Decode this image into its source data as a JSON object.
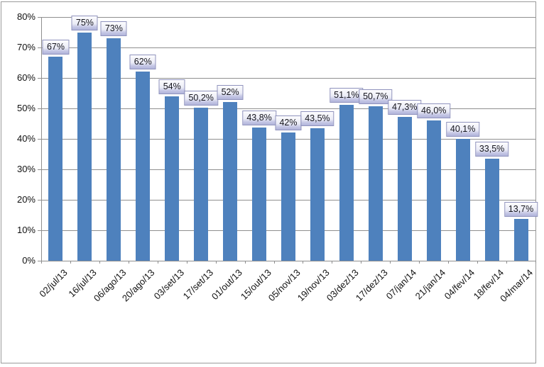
{
  "chart_data": {
    "type": "bar",
    "title": "",
    "xlabel": "",
    "ylabel": "",
    "categories": [
      "02/jul/13",
      "16/jul/13",
      "06/ago/13",
      "20/ago/13",
      "03/set/13",
      "17/set/13",
      "01/out/13",
      "15/out/13",
      "05/nov/13",
      "19/nov/13",
      "03/dez/13",
      "17/dez/13",
      "07/jan/14",
      "21/jan/14",
      "04/fev/14",
      "18/fev/14",
      "04/mar/14"
    ],
    "values": [
      67,
      75,
      73,
      62,
      54,
      50.2,
      52,
      43.8,
      42,
      43.5,
      51.1,
      50.7,
      47.3,
      46.0,
      40.1,
      33.5,
      13.7
    ],
    "data_labels": [
      "67%",
      "75%",
      "73%",
      "62%",
      "54%",
      "50,2%",
      "52%",
      "43,8%",
      "42%",
      "43,5%",
      "51,1%",
      "50,7%",
      "47,3%",
      "46,0%",
      "40,1%",
      "33,5%",
      "13,7%"
    ],
    "ylim": [
      0,
      80
    ],
    "yticks": [
      0,
      10,
      20,
      30,
      40,
      50,
      60,
      70,
      80
    ],
    "ytick_labels": [
      "0%",
      "10%",
      "20%",
      "30%",
      "40%",
      "50%",
      "60%",
      "70%",
      "80%"
    ],
    "grid": true,
    "legend": false,
    "colors": {
      "bar": "#4e81bd",
      "gridline": "#8f8f8f",
      "frame_border": "#9a9a9a",
      "label_border": "#9093bd",
      "label_text": "#16161e",
      "axis_text": "#111111",
      "background": "#ffffff"
    }
  }
}
